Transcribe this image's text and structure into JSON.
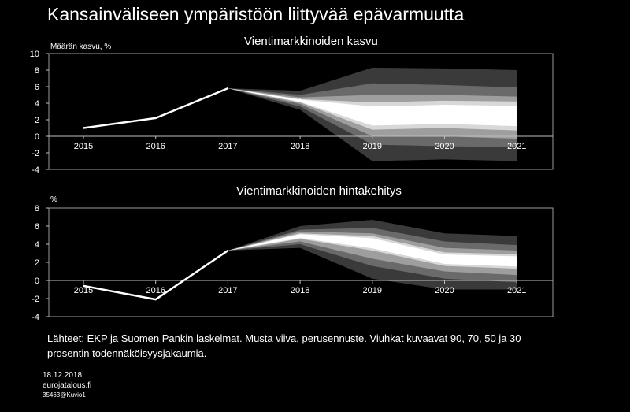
{
  "title": "Kansainväliseen ympäristöön liittyvää epävarmuutta",
  "colors": {
    "background": "#000000",
    "line": "#ffffff",
    "fan90": "#3a3a3a",
    "fan70": "#6a6a6a",
    "fan50": "#9e9e9e",
    "fan30": "#d8d8d8",
    "core": "#ffffff"
  },
  "chart_data": [
    {
      "type": "line",
      "title": "Vientimarkkinoiden kasvu",
      "ylabel": "Määrän kasvu,  %",
      "categories": [
        "2015",
        "2016",
        "2017",
        "2018",
        "2019",
        "2020",
        "2021"
      ],
      "yticks": [
        "10",
        "8",
        "6",
        "4",
        "2",
        "0",
        "-2",
        "-4"
      ],
      "ylim": [
        -4,
        10
      ],
      "series": [
        {
          "values": [
            1.0,
            2.2,
            5.8,
            4.5,
            3.7,
            3.6,
            3.5
          ]
        }
      ],
      "fan": {
        "start_index": 2,
        "bands": [
          {
            "level": 90,
            "lower": [
              5.8,
              3.2,
              -3.0,
              -2.8,
              -3.0
            ],
            "upper": [
              5.8,
              5.5,
              8.3,
              8.2,
              8.0
            ]
          },
          {
            "level": 70,
            "lower": [
              5.8,
              3.6,
              -1.0,
              -1.2,
              -1.3
            ],
            "upper": [
              5.8,
              5.0,
              6.4,
              6.2,
              5.9
            ]
          },
          {
            "level": 50,
            "lower": [
              5.8,
              3.9,
              0.0,
              0.0,
              -0.3
            ],
            "upper": [
              5.8,
              4.7,
              5.0,
              5.0,
              4.8
            ]
          },
          {
            "level": 30,
            "lower": [
              5.8,
              4.1,
              0.8,
              1.0,
              0.7
            ],
            "upper": [
              5.8,
              4.5,
              4.1,
              4.3,
              4.2
            ]
          }
        ]
      }
    },
    {
      "type": "line",
      "title": "Vientimarkkinoiden hintakehitys",
      "ylabel": "%",
      "categories": [
        "2015",
        "2016",
        "2017",
        "2018",
        "2019",
        "2020",
        "2021"
      ],
      "yticks": [
        "8",
        "6",
        "4",
        "2",
        "0",
        "-2",
        "-4"
      ],
      "ylim": [
        -4,
        8
      ],
      "series": [
        {
          "values": [
            -0.6,
            -2.1,
            3.3,
            5.0,
            4.2,
            2.2,
            2.1
          ]
        }
      ],
      "fan": {
        "start_index": 2,
        "bands": [
          {
            "level": 90,
            "lower": [
              3.3,
              3.6,
              0.2,
              -1.0,
              -1.0
            ],
            "upper": [
              3.3,
              6.0,
              6.7,
              5.2,
              4.9
            ]
          },
          {
            "level": 70,
            "lower": [
              3.3,
              4.0,
              1.6,
              0.2,
              -0.2
            ],
            "upper": [
              3.3,
              5.6,
              5.8,
              4.3,
              3.9
            ]
          },
          {
            "level": 50,
            "lower": [
              3.3,
              4.3,
              2.4,
              1.0,
              0.6
            ],
            "upper": [
              3.3,
              5.4,
              5.2,
              3.6,
              3.3
            ]
          },
          {
            "level": 30,
            "lower": [
              3.3,
              4.6,
              3.3,
              1.6,
              1.3
            ],
            "upper": [
              3.3,
              5.2,
              4.9,
              3.1,
              2.9
            ]
          }
        ]
      }
    }
  ],
  "source": "Lähteet: EKP ja Suomen Pankin laskelmat. Musta viiva, perusennuste. Viuhkat kuvaavat 90, 70, 50 ja 30 prosentin todennäköisyysjakaumia.",
  "footer": {
    "date": "18.12.2018",
    "site": "eurojatalous.fi",
    "code": "35463@Kuvio1"
  }
}
